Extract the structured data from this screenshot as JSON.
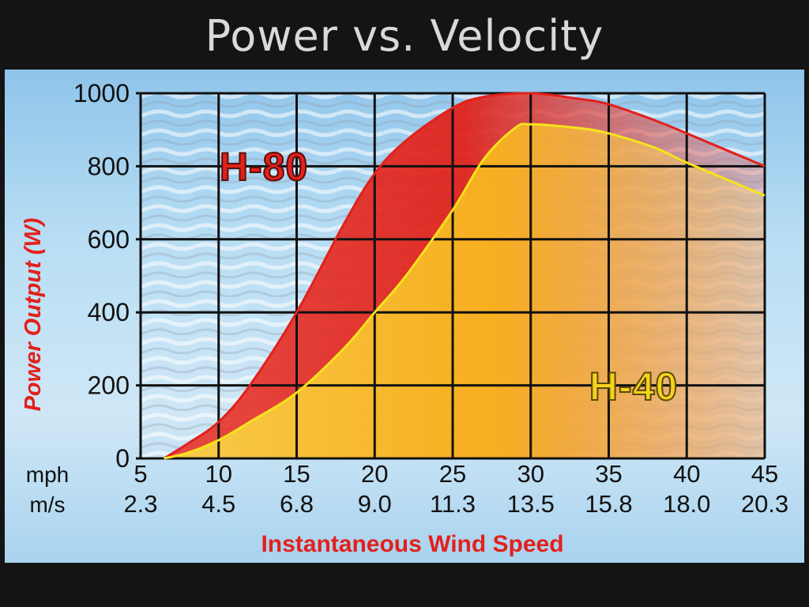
{
  "slide": {
    "title": "Power vs. Velocity"
  },
  "chart_data": {
    "type": "area",
    "title": "Power vs. Velocity",
    "ylabel": "Power Output (W)",
    "xlabel": "Instantaneous Wind Speed",
    "x_row_labels": [
      "mph",
      "m/s"
    ],
    "x_mph": [
      5,
      10,
      15,
      20,
      25,
      30,
      35,
      40,
      45
    ],
    "x_ms": [
      "2.3",
      "4.5",
      "6.8",
      "9.0",
      "11.3",
      "13.5",
      "15.8",
      "18.0",
      "20.3"
    ],
    "y_ticks": [
      0,
      200,
      400,
      600,
      800,
      1000
    ],
    "ylim": [
      0,
      1000
    ],
    "xlim": [
      5,
      45
    ],
    "grid": true,
    "series": [
      {
        "name": "H-80",
        "color": "#e3201b",
        "x": [
          6.5,
          8,
          10,
          12,
          15,
          18,
          20,
          22,
          25,
          27,
          30,
          33,
          35,
          38,
          40,
          45
        ],
        "y": [
          0,
          40,
          100,
          200,
          400,
          640,
          780,
          870,
          960,
          990,
          1000,
          985,
          970,
          925,
          890,
          800
        ]
      },
      {
        "name": "H-40",
        "color": "#f6e31c",
        "x": [
          6.5,
          8,
          10,
          12,
          15,
          18,
          20,
          22,
          25,
          27,
          29,
          30,
          33,
          35,
          38,
          40,
          45
        ],
        "y": [
          0,
          15,
          50,
          100,
          180,
          300,
          400,
          500,
          680,
          820,
          905,
          915,
          905,
          890,
          850,
          810,
          720
        ]
      }
    ]
  }
}
